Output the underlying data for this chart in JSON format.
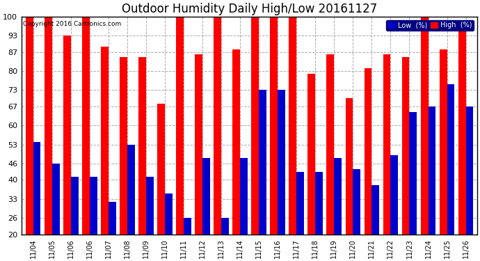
{
  "title": "Outdoor Humidity Daily High/Low 20161127",
  "copyright": "Copyright 2016 Cartronics.com",
  "dates": [
    "11/04",
    "11/05",
    "11/06",
    "11/06",
    "11/07",
    "11/08",
    "11/09",
    "11/10",
    "11/11",
    "11/12",
    "11/13",
    "11/14",
    "11/15",
    "11/16",
    "11/17",
    "11/18",
    "11/19",
    "11/20",
    "11/21",
    "11/22",
    "11/23",
    "11/24",
    "11/25",
    "11/26"
  ],
  "high_values": [
    100,
    100,
    93,
    100,
    89,
    85,
    85,
    68,
    100,
    86,
    100,
    88,
    100,
    100,
    100,
    79,
    86,
    70,
    81,
    86,
    85,
    100,
    88,
    95
  ],
  "low_values": [
    54,
    46,
    41,
    41,
    32,
    53,
    41,
    35,
    26,
    48,
    26,
    48,
    73,
    73,
    43,
    43,
    48,
    44,
    38,
    49,
    65,
    67,
    75,
    67
  ],
  "ylim": [
    20,
    100
  ],
  "yticks": [
    20,
    26,
    33,
    40,
    46,
    53,
    60,
    67,
    73,
    80,
    87,
    93,
    100
  ],
  "bar_width": 0.4,
  "high_color": "#ff0000",
  "low_color": "#0000cc",
  "bg_color": "#ffffff",
  "grid_color": "#aaaaaa",
  "title_fontsize": 12,
  "legend_low_label": "Low  (%)",
  "legend_high_label": "High  (%)",
  "figsize": [
    6.9,
    3.75
  ],
  "dpi": 100
}
